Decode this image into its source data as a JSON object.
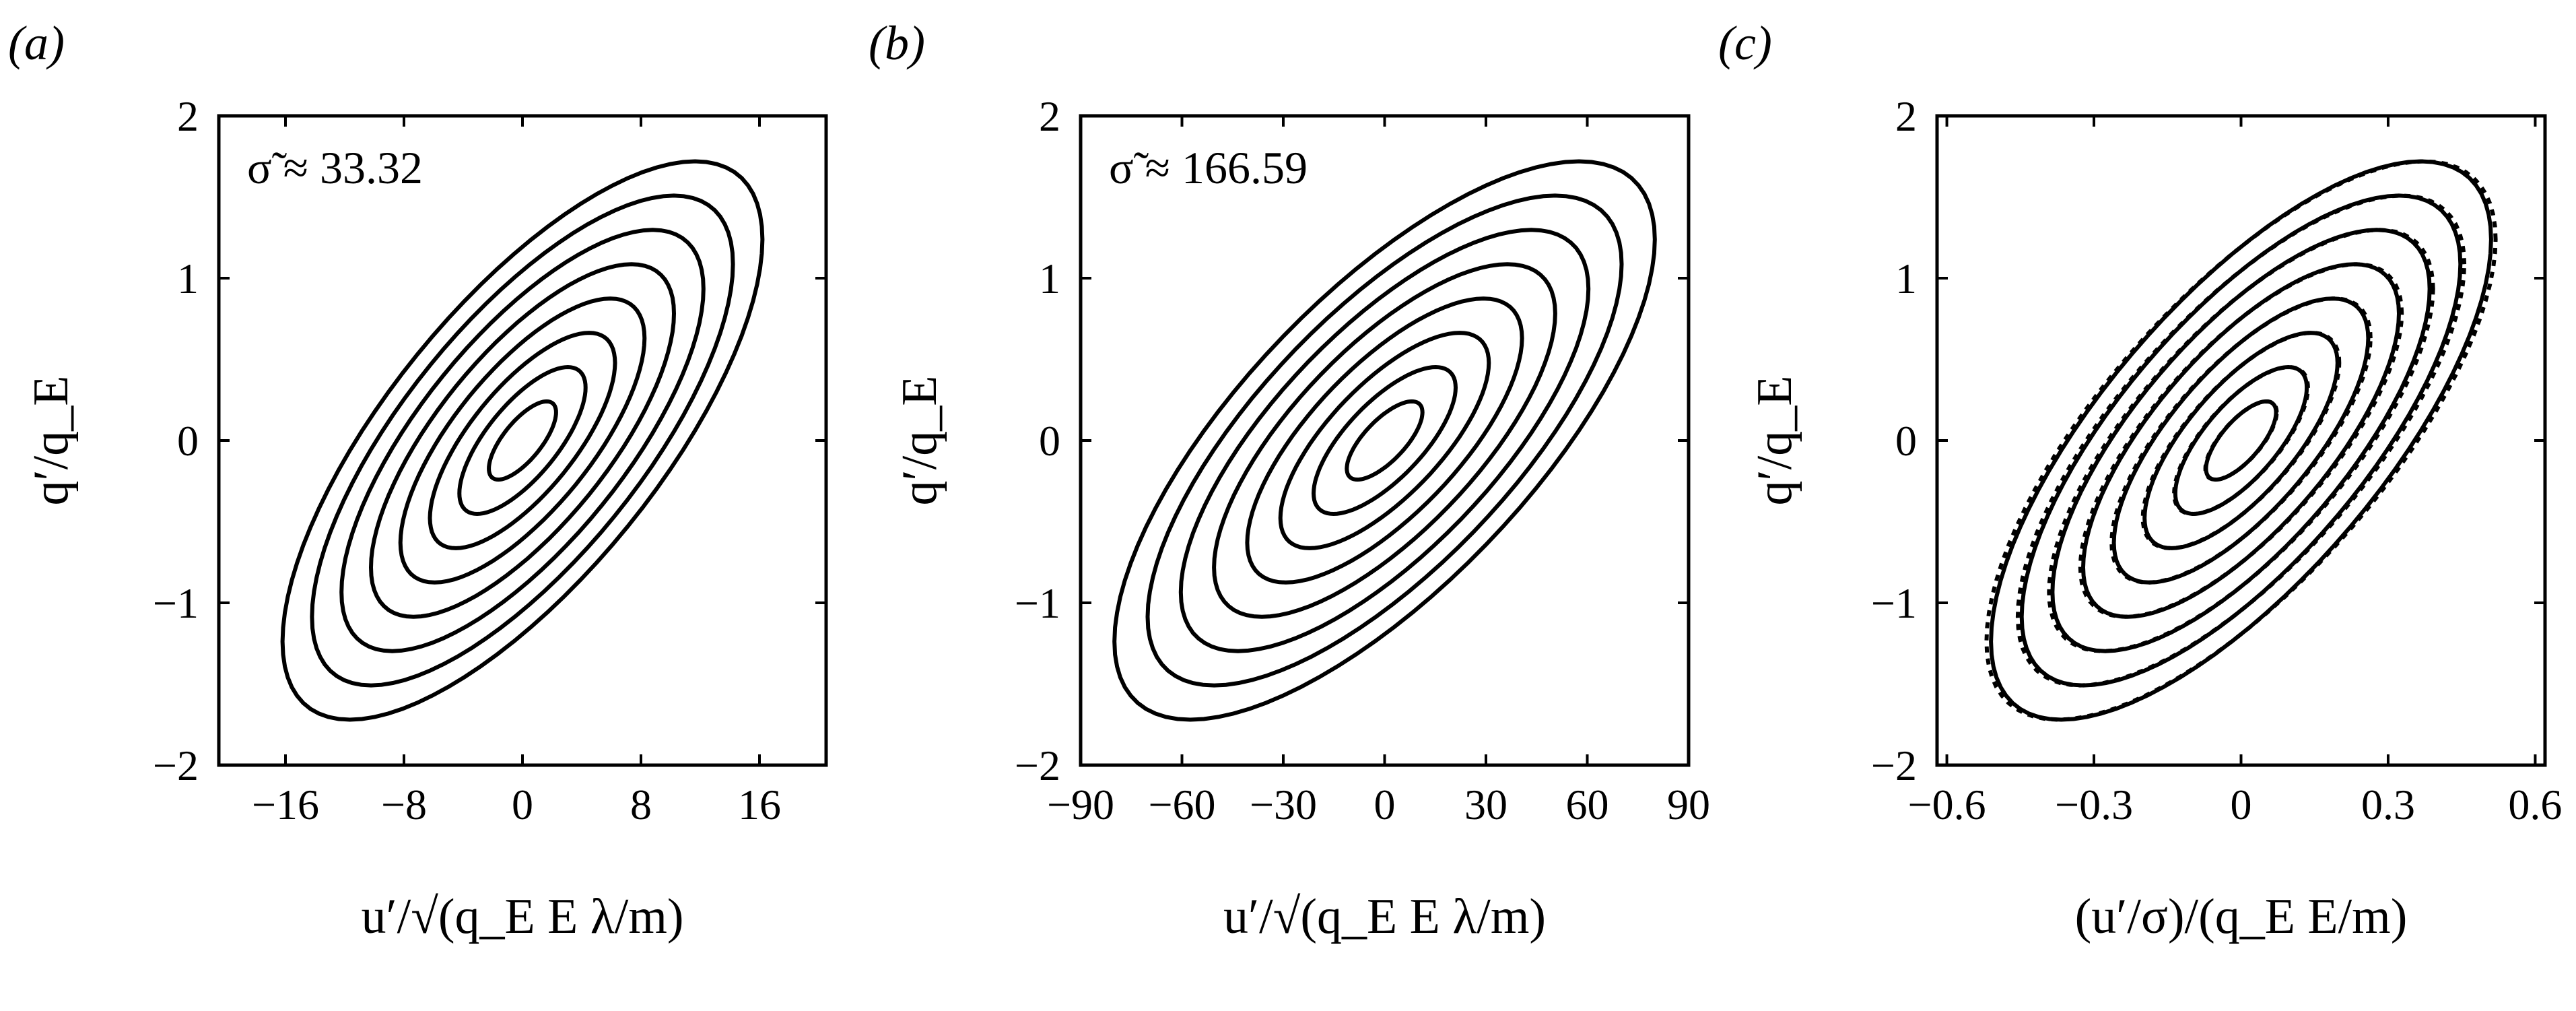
{
  "chart_data": [
    {
      "panel_label": "(a)",
      "type": "contour",
      "annotation": "σ̃ ≈ 33.32",
      "xlabel": "u′/√(q_E E λ/m)",
      "ylabel": "q′/q_E",
      "xlim": [
        -20.5,
        20.5
      ],
      "ylim": [
        -2,
        2
      ],
      "xticks": [
        -16,
        -8,
        0,
        8,
        16
      ],
      "xtick_labels": [
        "−16",
        "−8",
        "0",
        "8",
        "16"
      ],
      "yticks": [
        -2,
        -1,
        0,
        1,
        2
      ],
      "ytick_labels": [
        "−2",
        "−1",
        "0",
        "1",
        "2"
      ],
      "legend": false,
      "grid": false,
      "contours": {
        "center": [
          0,
          0
        ],
        "outer_x_extent": 16.2,
        "outer_y_extent": 1.72,
        "correlation": 0.72,
        "levels": 8,
        "reference_dashed": false
      }
    },
    {
      "panel_label": "(b)",
      "type": "contour",
      "annotation": "σ̃ ≈ 166.59",
      "xlabel": "u′/√(q_E E λ/m)",
      "ylabel": "q′/q_E",
      "xlim": [
        -90,
        90
      ],
      "ylim": [
        -2,
        2
      ],
      "xticks": [
        -90,
        -60,
        -30,
        0,
        30,
        60,
        90
      ],
      "xtick_labels": [
        "−90",
        "−60",
        "−30",
        "0",
        "30",
        "60",
        "90"
      ],
      "yticks": [
        -2,
        -1,
        0,
        1,
        2
      ],
      "ytick_labels": [
        "−2",
        "−1",
        "0",
        "1",
        "2"
      ],
      "legend": false,
      "grid": false,
      "contours": {
        "center": [
          0,
          0
        ],
        "outer_x_extent": 80,
        "outer_y_extent": 1.72,
        "correlation": 0.72,
        "levels": 8,
        "reference_dashed": false
      }
    },
    {
      "panel_label": "(c)",
      "type": "contour",
      "annotation": "",
      "xlabel": "(u′/σ)/(q_E E/m)",
      "ylabel": "q′/q_E",
      "xlim": [
        -0.62,
        0.62
      ],
      "ylim": [
        -2,
        2
      ],
      "xticks": [
        -0.6,
        -0.3,
        0,
        0.3,
        0.6
      ],
      "xtick_labels": [
        "−0.6",
        "−0.3",
        "0",
        "0.3",
        "0.6"
      ],
      "yticks": [
        -2,
        -1,
        0,
        1,
        2
      ],
      "ytick_labels": [
        "−2",
        "−1",
        "0",
        "1",
        "2"
      ],
      "legend": false,
      "grid": false,
      "contours": {
        "center": [
          0,
          0
        ],
        "outer_x_extent": 0.51,
        "outer_y_extent": 1.72,
        "correlation": 0.72,
        "levels": 8,
        "reference_dashed": true
      }
    }
  ]
}
